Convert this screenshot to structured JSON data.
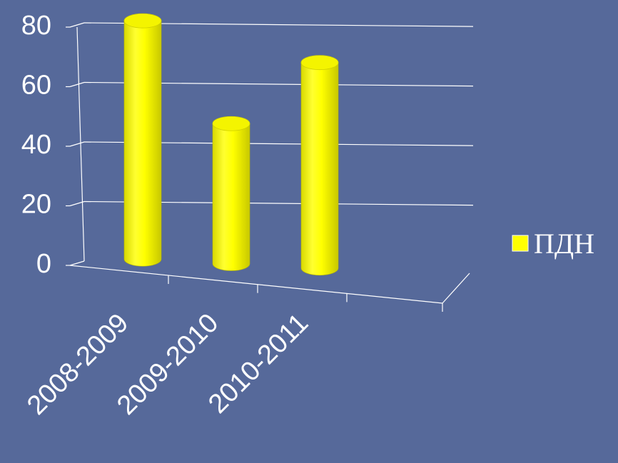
{
  "chart_data": {
    "type": "bar",
    "style": "3d-cylinder",
    "categories": [
      "2008-2009",
      "2009-2010",
      "2010-2011"
    ],
    "series": [
      {
        "name": "ПДН",
        "values": [
          80,
          47,
          69
        ],
        "color": "#ffff00"
      }
    ],
    "yticks": [
      "0",
      "20",
      "40",
      "60",
      "80"
    ],
    "ylim": [
      0,
      80
    ],
    "grid": true,
    "legend_position": "right",
    "background_color": "#56699a",
    "text_color": "#ffffff"
  }
}
